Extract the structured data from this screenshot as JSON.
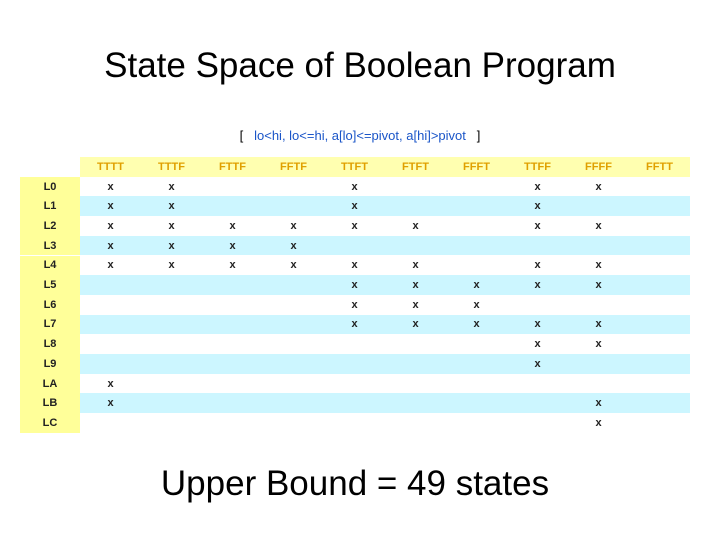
{
  "slide": {
    "title": "State Space of Boolean Program",
    "predicates": {
      "open": "[",
      "text": "lo<hi, lo<=hi, a[lo]<=pivot, a[hi]>pivot",
      "close": "]"
    },
    "table": {
      "columns": [
        "TTTT",
        "TTTF",
        "FTTF",
        "FFTF",
        "TTFT",
        "FTFT",
        "FFFT",
        "TTFF",
        "FFFF",
        "FFTT"
      ],
      "rows": [
        {
          "label": "L0",
          "cells": [
            "x",
            "x",
            null,
            null,
            "x",
            null,
            null,
            "x",
            "x",
            null
          ]
        },
        {
          "label": "L1",
          "cells": [
            "x",
            "x",
            null,
            null,
            "x",
            null,
            null,
            "x",
            null,
            null
          ]
        },
        {
          "label": "L2",
          "cells": [
            "x",
            "x",
            "x",
            "x",
            "x",
            "x",
            null,
            "x",
            "x",
            null
          ]
        },
        {
          "label": "L3",
          "cells": [
            "x",
            "x",
            "x",
            "x",
            null,
            null,
            null,
            null,
            null,
            null
          ]
        },
        {
          "label": "L4",
          "cells": [
            "x",
            "x",
            "x",
            "x",
            "x",
            "x",
            null,
            "x",
            "x",
            null
          ]
        },
        {
          "label": "L5",
          "cells": [
            null,
            null,
            null,
            null,
            "x",
            "x",
            "x",
            "x",
            "x",
            null
          ]
        },
        {
          "label": "L6",
          "cells": [
            null,
            null,
            null,
            null,
            "x",
            "x",
            "x",
            null,
            null,
            null
          ]
        },
        {
          "label": "L7",
          "cells": [
            null,
            null,
            null,
            null,
            "x",
            "x",
            "x",
            "x",
            "x",
            null
          ]
        },
        {
          "label": "L8",
          "cells": [
            null,
            null,
            null,
            null,
            null,
            null,
            null,
            "x",
            "x",
            null
          ]
        },
        {
          "label": "L9",
          "cells": [
            null,
            null,
            null,
            null,
            null,
            null,
            null,
            "x",
            null,
            null
          ]
        },
        {
          "label": "LA",
          "cells": [
            "x",
            null,
            null,
            null,
            null,
            null,
            null,
            null,
            null,
            null
          ]
        },
        {
          "label": "LB",
          "cells": [
            "x",
            null,
            null,
            null,
            null,
            null,
            null,
            null,
            "x",
            null
          ]
        },
        {
          "label": "LC",
          "cells": [
            null,
            null,
            null,
            null,
            null,
            null,
            null,
            null,
            "x",
            null
          ]
        }
      ]
    },
    "footer": "Upper Bound = 49 states"
  }
}
